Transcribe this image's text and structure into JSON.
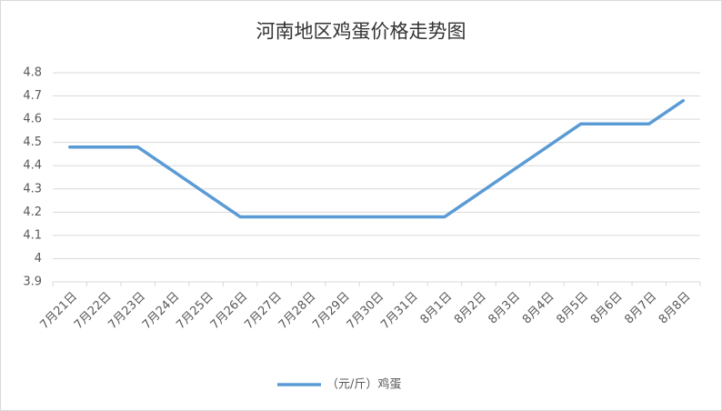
{
  "chart_data": {
    "type": "line",
    "title": "河南地区鸡蛋价格走势图",
    "categories": [
      "7月21日",
      "7月22日",
      "7月23日",
      "7月24日",
      "7月25日",
      "7月26日",
      "7月27日",
      "7月28日",
      "7月29日",
      "7月30日",
      "7月31日",
      "8月1日",
      "8月2日",
      "8月3日",
      "8月4日",
      "8月5日",
      "8月6日",
      "8月7日",
      "8月8日"
    ],
    "series": [
      {
        "name": "（元/斤）鸡蛋",
        "color": "#5b9bd5",
        "values": [
          4.48,
          4.48,
          4.48,
          4.38,
          4.28,
          4.18,
          4.18,
          4.18,
          4.18,
          4.18,
          4.18,
          4.18,
          4.28,
          4.38,
          4.48,
          4.58,
          4.58,
          4.58,
          4.68
        ]
      }
    ],
    "ylim": [
      3.9,
      4.8
    ],
    "yticks": [
      3.9,
      4,
      4.1,
      4.2,
      4.3,
      4.4,
      4.5,
      4.6,
      4.7,
      4.8
    ],
    "grid": true,
    "legend": "bottom"
  }
}
